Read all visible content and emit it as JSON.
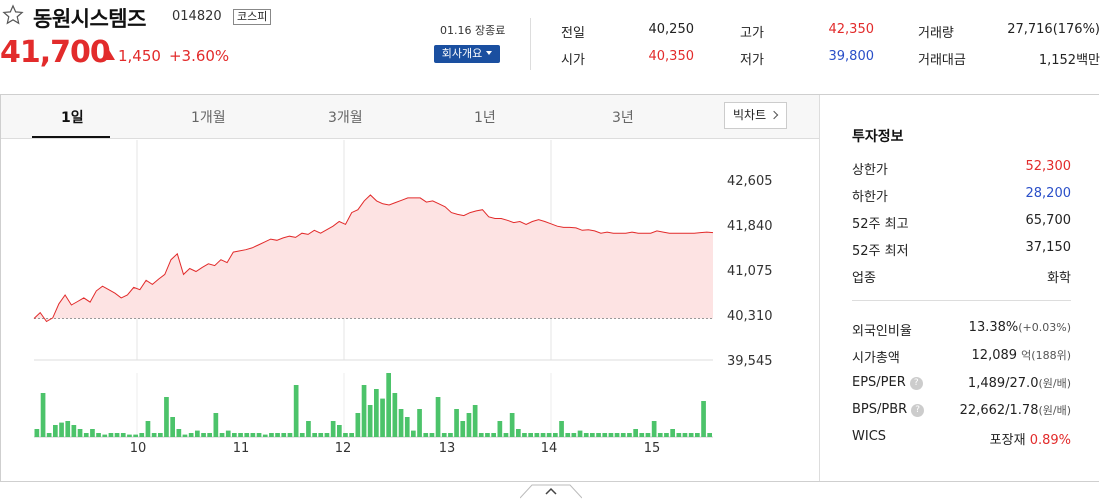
{
  "stock": {
    "name": "동원시스템즈",
    "code": "014820",
    "market": "코스피",
    "price": "41,700",
    "change": "1,450",
    "change_pct": "+3.60%"
  },
  "status": {
    "date": "01.16 장종료",
    "company_button": "회사개요"
  },
  "stats": {
    "prev_label": "전일",
    "prev_value": "40,250",
    "open_label": "시가",
    "open_value": "40,350",
    "high_label": "고가",
    "high_value": "42,350",
    "low_label": "저가",
    "low_value": "39,800",
    "volume_label": "거래량",
    "volume_value": "27,716(176%)",
    "amount_label": "거래대금",
    "amount_value": "1,152백만"
  },
  "tabs": [
    "1일",
    "1개월",
    "3개월",
    "1년",
    "3년"
  ],
  "big_chart_label": "빅차트",
  "invest": {
    "title": "투자정보",
    "upper_label": "상한가",
    "upper_value": "52,300",
    "lower_label": "하한가",
    "lower_value": "28,200",
    "high52_label": "52주 최고",
    "high52_value": "65,700",
    "low52_label": "52주 최저",
    "low52_value": "37,150",
    "sector_label": "업종",
    "sector_value": "화학",
    "foreign_label": "외국인비율",
    "foreign_value": "13.38%",
    "foreign_sub": "(+0.03%)",
    "mcap_label": "시가총액",
    "mcap_value": "12,089",
    "mcap_unit": "억",
    "mcap_sub": "(188위)",
    "eps_label": "EPS/PER",
    "eps_value": "1,489/27.0",
    "eps_unit": "(원/배)",
    "bps_label": "BPS/PBR",
    "bps_value": "22,662/1.78",
    "bps_unit": "(원/배)",
    "wics_label": "WICS",
    "wics_value": "포장재",
    "wics_pct": "0.89%"
  },
  "colors": {
    "up": "#e22b2b",
    "down": "#2a4fc8",
    "volume": "#4cc36a",
    "accent": "#1a4fa0"
  },
  "chart_data": {
    "type": "area",
    "y_ticks": [
      "42,605",
      "41,840",
      "41,075",
      "40,310",
      "39,545"
    ],
    "ylim": [
      39545,
      42605
    ],
    "prev_close": 40250,
    "x_ticks": [
      "10",
      "11",
      "12",
      "13",
      "14",
      "15"
    ],
    "price": [
      40250,
      40350,
      40200,
      40260,
      40500,
      40650,
      40480,
      40540,
      40600,
      40530,
      40720,
      40800,
      40740,
      40680,
      40600,
      40650,
      40780,
      40740,
      40900,
      40830,
      40920,
      41000,
      41250,
      41350,
      41000,
      41100,
      41050,
      41120,
      41180,
      41150,
      41250,
      41200,
      41380,
      41400,
      41420,
      41450,
      41500,
      41550,
      41600,
      41580,
      41620,
      41650,
      41630,
      41700,
      41680,
      41750,
      41700,
      41760,
      41820,
      41900,
      41850,
      42050,
      42100,
      42250,
      42350,
      42250,
      42200,
      42180,
      42220,
      42260,
      42300,
      42300,
      42300,
      42230,
      42250,
      42200,
      42150,
      42050,
      42020,
      42000,
      42050,
      42080,
      42100,
      41980,
      41950,
      41950,
      41920,
      41880,
      41900,
      41850,
      41900,
      41930,
      41900,
      41860,
      41820,
      41800,
      41800,
      41790,
      41750,
      41760,
      41740,
      41700,
      41720,
      41700,
      41700,
      41700,
      41720,
      41700,
      41700,
      41700,
      41740,
      41720,
      41700,
      41700,
      41700,
      41700,
      41700,
      41710,
      41720,
      41710
    ],
    "volume": [
      10,
      55,
      5,
      15,
      18,
      20,
      15,
      10,
      5,
      10,
      5,
      3,
      5,
      5,
      5,
      3,
      3,
      5,
      20,
      5,
      5,
      50,
      25,
      10,
      3,
      5,
      8,
      5,
      5,
      30,
      5,
      8,
      5,
      5,
      5,
      5,
      5,
      3,
      5,
      5,
      5,
      5,
      65,
      5,
      20,
      5,
      5,
      5,
      20,
      15,
      5,
      5,
      30,
      65,
      40,
      60,
      48,
      80,
      55,
      35,
      25,
      8,
      35,
      5,
      5,
      50,
      5,
      5,
      35,
      20,
      30,
      40,
      5,
      5,
      5,
      20,
      5,
      30,
      10,
      5,
      5,
      5,
      5,
      5,
      5,
      20,
      5,
      5,
      8,
      5,
      5,
      5,
      5,
      5,
      5,
      5,
      5,
      10,
      5,
      5,
      20,
      5,
      5,
      10,
      5,
      5,
      5,
      5,
      45,
      5
    ]
  }
}
